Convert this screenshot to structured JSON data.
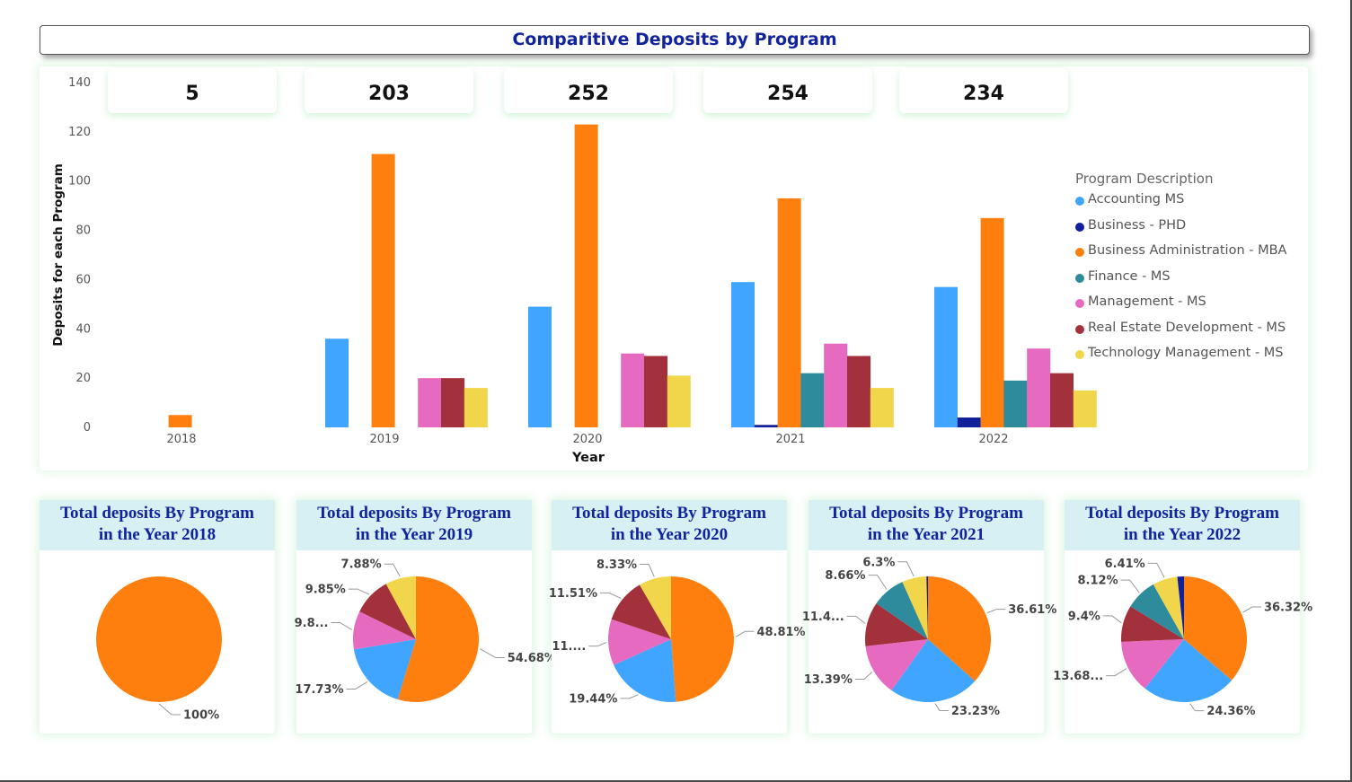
{
  "title": "Comparitive Deposits by Program",
  "totals": [
    "5",
    "203",
    "252",
    "254",
    "234"
  ],
  "legend": {
    "title": "Program Description",
    "items": [
      {
        "label": "Accounting MS",
        "color": "#3fa5ff"
      },
      {
        "label": "Business - PHD",
        "color": "#13209c"
      },
      {
        "label": "Business Administration - MBA",
        "color": "#ff7f0e"
      },
      {
        "label": "Finance - MS",
        "color": "#2e8b9c"
      },
      {
        "label": "Management - MS",
        "color": "#e76ac1"
      },
      {
        "label": "Real Estate Development - MS",
        "color": "#a3313c"
      },
      {
        "label": "Technology Management - MS",
        "color": "#f1d54a"
      }
    ]
  },
  "chart_data": [
    {
      "type": "bar",
      "title": "Comparitive Deposits by Program",
      "xlabel": "Year",
      "ylabel": "Deposits for each Program",
      "ylim": [
        0,
        140
      ],
      "yticks": [
        0,
        20,
        40,
        60,
        80,
        100,
        120,
        140
      ],
      "categories": [
        "2018",
        "2019",
        "2020",
        "2021",
        "2022"
      ],
      "legend_position": "right",
      "series": [
        {
          "name": "Accounting MS",
          "values": [
            0,
            36,
            49,
            59,
            57
          ]
        },
        {
          "name": "Business - PHD",
          "values": [
            0,
            0,
            0,
            1,
            4
          ]
        },
        {
          "name": "Business Administration - MBA",
          "values": [
            5,
            111,
            123,
            93,
            85
          ]
        },
        {
          "name": "Finance - MS",
          "values": [
            0,
            0,
            0,
            22,
            19
          ]
        },
        {
          "name": "Management - MS",
          "values": [
            0,
            20,
            30,
            34,
            32
          ]
        },
        {
          "name": "Real Estate Development - MS",
          "values": [
            0,
            20,
            29,
            29,
            22
          ]
        },
        {
          "name": "Technology Management - MS",
          "values": [
            0,
            16,
            21,
            16,
            15
          ]
        }
      ]
    },
    {
      "type": "pie",
      "title": "Total deposits By Program in the Year 2018",
      "slices": [
        {
          "series": "Business Administration - MBA",
          "value": 5,
          "label": "100%"
        }
      ]
    },
    {
      "type": "pie",
      "title": "Total deposits By Program in the Year 2019",
      "slices": [
        {
          "series": "Business Administration - MBA",
          "value": 111,
          "label": "54.68%"
        },
        {
          "series": "Accounting MS",
          "value": 36,
          "label": "17.73%"
        },
        {
          "series": "Management - MS",
          "value": 20,
          "label": "9.8..."
        },
        {
          "series": "Real Estate Development - MS",
          "value": 20,
          "label": "9.85%"
        },
        {
          "series": "Technology Management - MS",
          "value": 16,
          "label": "7.88%"
        }
      ]
    },
    {
      "type": "pie",
      "title": "Total deposits By Program in the Year 2020",
      "slices": [
        {
          "series": "Business Administration - MBA",
          "value": 123,
          "label": "48.81%"
        },
        {
          "series": "Accounting MS",
          "value": 49,
          "label": "19.44%"
        },
        {
          "series": "Management - MS",
          "value": 30,
          "label": "11...."
        },
        {
          "series": "Real Estate Development - MS",
          "value": 29,
          "label": "11.51%"
        },
        {
          "series": "Technology Management - MS",
          "value": 21,
          "label": "8.33%"
        }
      ]
    },
    {
      "type": "pie",
      "title": "Total deposits By Program in the Year 2021",
      "slices": [
        {
          "series": "Business Administration - MBA",
          "value": 93,
          "label": "36.61%"
        },
        {
          "series": "Accounting MS",
          "value": 59,
          "label": "23.23%"
        },
        {
          "series": "Management - MS",
          "value": 34,
          "label": "13.39%"
        },
        {
          "series": "Real Estate Development - MS",
          "value": 29,
          "label": "11.4..."
        },
        {
          "series": "Finance - MS",
          "value": 22,
          "label": "8.66%"
        },
        {
          "series": "Technology Management - MS",
          "value": 16,
          "label": "6.3%"
        },
        {
          "series": "Business - PHD",
          "value": 1,
          "label": ""
        }
      ]
    },
    {
      "type": "pie",
      "title": "Total deposits By Program in the Year 2022",
      "slices": [
        {
          "series": "Business Administration - MBA",
          "value": 85,
          "label": "36.32%"
        },
        {
          "series": "Accounting MS",
          "value": 57,
          "label": "24.36%"
        },
        {
          "series": "Management - MS",
          "value": 32,
          "label": "13.68..."
        },
        {
          "series": "Real Estate Development - MS",
          "value": 22,
          "label": "9.4%"
        },
        {
          "series": "Finance - MS",
          "value": 19,
          "label": "8.12%"
        },
        {
          "series": "Technology Management - MS",
          "value": 15,
          "label": "6.41%"
        },
        {
          "series": "Business - PHD",
          "value": 4,
          "label": ""
        }
      ]
    }
  ],
  "pie_titles": [
    [
      "Total deposits By Program",
      "in the Year 2018"
    ],
    [
      "Total deposits By Program",
      "in the Year 2019"
    ],
    [
      "Total deposits By Program",
      "in the Year 2020"
    ],
    [
      "Total deposits By Program",
      "in the Year 2021"
    ],
    [
      "Total deposits By Program",
      "in the Year 2022"
    ]
  ]
}
